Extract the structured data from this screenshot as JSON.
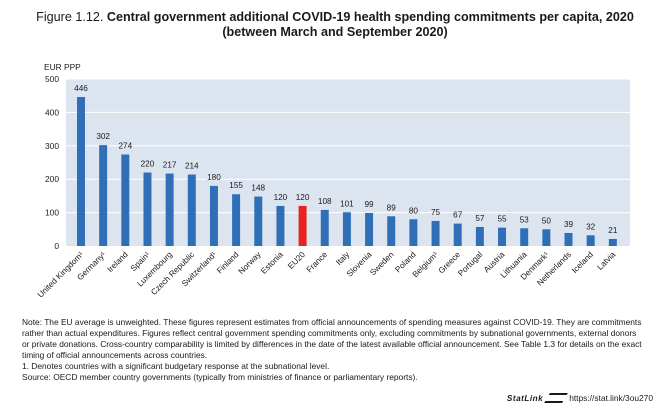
{
  "title": {
    "figure_label": "Figure 1.12.",
    "main": "Central government additional COVID-19 health spending commitments per capita, 2020",
    "sub": "(between March and September 2020)"
  },
  "chart_data": {
    "type": "bar",
    "ylabel": "EUR PPP",
    "ylim": [
      0,
      500
    ],
    "yticks": [
      0,
      100,
      200,
      300,
      400,
      500
    ],
    "grid": true,
    "categories": [
      "United Kingdom¹",
      "Germany¹",
      "Ireland",
      "Spain¹",
      "Luxembourg",
      "Czech Republic",
      "Switzerland¹",
      "Finland",
      "Norway",
      "Estonia",
      "EU20",
      "France",
      "Italy",
      "Slovenia",
      "Sweden",
      "Poland",
      "Belgium¹",
      "Greece",
      "Portugal",
      "Austria",
      "Lithuania",
      "Denmark¹",
      "Netherlands",
      "Iceland",
      "Latvia"
    ],
    "values": [
      446,
      302,
      274,
      220,
      217,
      214,
      180,
      155,
      148,
      120,
      120,
      108,
      101,
      99,
      89,
      80,
      75,
      67,
      57,
      55,
      53,
      50,
      39,
      32,
      21
    ],
    "highlight": "EU20",
    "colors": {
      "bar": "#2E6FB7",
      "highlight": "#E8231F",
      "grid": "#ffffff",
      "plot_bg": "#DCE4F0"
    }
  },
  "notes": {
    "main": "Note: The EU average is unweighted. These figures represent estimates from official announcements of spending measures against COVID-19. They are commitments rather than actual expenditures. Figures reflect central government spending commitments only, excluding commitments by subnational governments, external donors or private donations. Cross-country comparability is limited by differences in the date of the latest available official announcement. See Table 1.3 for details on the exact timing of official announcements across countries.",
    "footnote": "1. Denotes countries with a significant budgetary response at the subnational level.",
    "source": "Source: OECD member country governments (typically from ministries of finance or parliamentary reports)."
  },
  "footer": {
    "statlink_label": "StatLink",
    "url": "https://stat.link/3ou270"
  }
}
